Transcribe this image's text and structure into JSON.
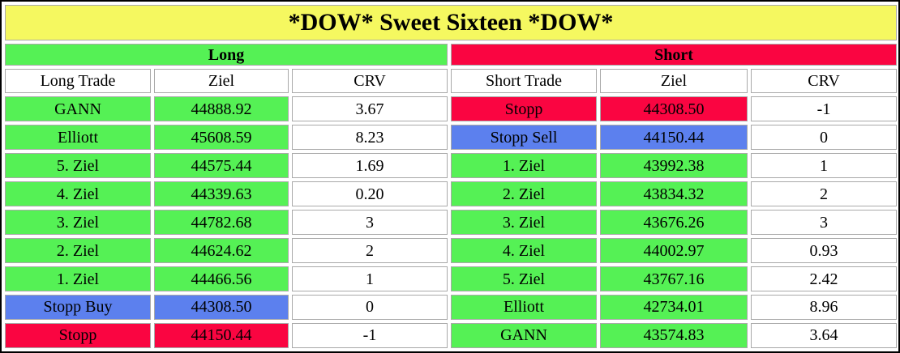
{
  "title": "*DOW* Sweet Sixteen *DOW*",
  "colors": {
    "yellow": "#f5f860",
    "green": "#55f155",
    "red": "#fa0541",
    "blue": "#5c80ee",
    "cell_border": "#a9a9a9",
    "outer_border": "#000000"
  },
  "sections": {
    "long": {
      "label": "Long",
      "headers": [
        "Long Trade",
        "Ziel",
        "CRV"
      ],
      "rows": [
        {
          "trade": "GANN",
          "ziel": "44888.92",
          "crv": "3.67",
          "color": "green"
        },
        {
          "trade": "Elliott",
          "ziel": "45608.59",
          "crv": "8.23",
          "color": "green"
        },
        {
          "trade": "5. Ziel",
          "ziel": "44575.44",
          "crv": "1.69",
          "color": "green"
        },
        {
          "trade": "4. Ziel",
          "ziel": "44339.63",
          "crv": "0.20",
          "color": "green"
        },
        {
          "trade": "3. Ziel",
          "ziel": "44782.68",
          "crv": "3",
          "color": "green"
        },
        {
          "trade": "2. Ziel",
          "ziel": "44624.62",
          "crv": "2",
          "color": "green"
        },
        {
          "trade": "1. Ziel",
          "ziel": "44466.56",
          "crv": "1",
          "color": "green"
        },
        {
          "trade": "Stopp Buy",
          "ziel": "44308.50",
          "crv": "0",
          "color": "blue"
        },
        {
          "trade": "Stopp",
          "ziel": "44150.44",
          "crv": "-1",
          "color": "red"
        }
      ]
    },
    "short": {
      "label": "Short",
      "headers": [
        "Short Trade",
        "Ziel",
        "CRV"
      ],
      "rows": [
        {
          "trade": "Stopp",
          "ziel": "44308.50",
          "crv": "-1",
          "color": "red"
        },
        {
          "trade": "Stopp Sell",
          "ziel": "44150.44",
          "crv": "0",
          "color": "blue"
        },
        {
          "trade": "1. Ziel",
          "ziel": "43992.38",
          "crv": "1",
          "color": "green"
        },
        {
          "trade": "2. Ziel",
          "ziel": "43834.32",
          "crv": "2",
          "color": "green"
        },
        {
          "trade": "3. Ziel",
          "ziel": "43676.26",
          "crv": "3",
          "color": "green"
        },
        {
          "trade": "4. Ziel",
          "ziel": "44002.97",
          "crv": "0.93",
          "color": "green"
        },
        {
          "trade": "5. Ziel",
          "ziel": "43767.16",
          "crv": "2.42",
          "color": "green"
        },
        {
          "trade": "Elliott",
          "ziel": "42734.01",
          "crv": "8.96",
          "color": "green"
        },
        {
          "trade": "GANN",
          "ziel": "43574.83",
          "crv": "3.64",
          "color": "green"
        }
      ]
    }
  }
}
